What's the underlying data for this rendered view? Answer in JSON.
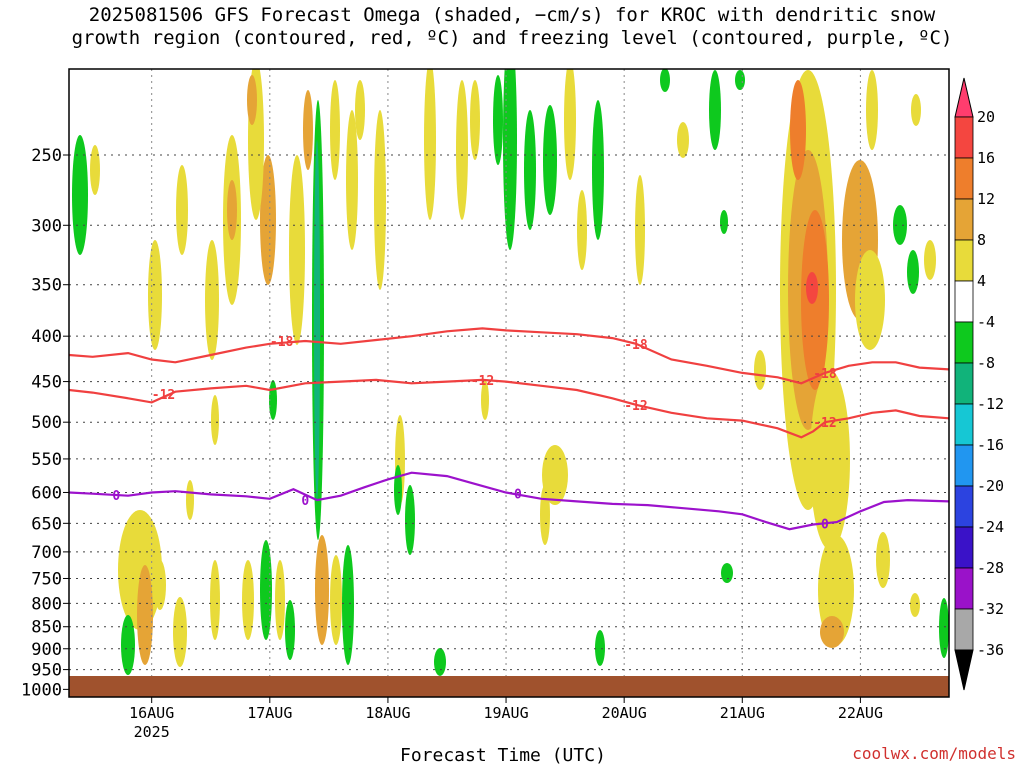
{
  "chart_data": {
    "type": "heatmap",
    "title_lines": [
      "2025081506 GFS Forecast Omega (shaded, −cm/s) for KROC with dendritic snow",
      "growth region (contoured, red, ºC) and freezing level (contoured, purple, ºC)"
    ],
    "xlabel": "Forecast Time (UTC)",
    "ylabel": "",
    "x_ticks": [
      "16AUG",
      "17AUG",
      "18AUG",
      "19AUG",
      "20AUG",
      "21AUG",
      "22AUG"
    ],
    "x_tick_sublabel": "2025",
    "x_range_days": [
      15.3,
      22.75
    ],
    "y_ticks": [
      250,
      300,
      350,
      400,
      450,
      500,
      550,
      600,
      650,
      700,
      750,
      800,
      850,
      900,
      950,
      1000
    ],
    "y_range_hpa": [
      200,
      1020
    ],
    "y_scale": "log",
    "grid": true,
    "colorbar": {
      "labels": [
        "20",
        "16",
        "12",
        "8",
        "4",
        "-4",
        "-8",
        "-12",
        "-16",
        "-20",
        "-24",
        "-28",
        "-32",
        "-36"
      ],
      "colors": [
        "#ff3d6e",
        "#f44640",
        "#ee7e2c",
        "#e5a436",
        "#e8db3a",
        "#ffffff",
        "#0ec91e",
        "#11b37a",
        "#16c7d4",
        "#2196f0",
        "#2c43e0",
        "#3a12c8",
        "#9a12c9",
        "#a8a8a8"
      ]
    },
    "contours": [
      {
        "label": "-18",
        "color": "#f04040",
        "x": [
          15.3,
          15.5,
          15.8,
          16.0,
          16.2,
          16.5,
          16.8,
          17.0,
          17.3,
          17.6,
          17.9,
          18.2,
          18.5,
          18.8,
          19.0,
          19.3,
          19.6,
          19.9,
          20.1,
          20.4,
          20.7,
          21.0,
          21.3,
          21.5,
          21.7,
          21.9,
          22.1,
          22.3,
          22.5,
          22.75
        ],
        "y": [
          420,
          422,
          418,
          425,
          428,
          420,
          412,
          408,
          405,
          408,
          404,
          400,
          395,
          392,
          394,
          396,
          398,
          402,
          408,
          425,
          432,
          440,
          445,
          452,
          440,
          432,
          428,
          428,
          434,
          436
        ]
      },
      {
        "label": "-12",
        "color": "#f04040",
        "x": [
          15.3,
          15.5,
          15.8,
          16.0,
          16.2,
          16.5,
          16.8,
          17.0,
          17.3,
          17.6,
          17.9,
          18.2,
          18.5,
          18.8,
          19.0,
          19.3,
          19.6,
          19.9,
          20.1,
          20.4,
          20.7,
          21.0,
          21.3,
          21.5,
          21.6,
          21.7,
          21.9,
          22.1,
          22.3,
          22.5,
          22.75
        ],
        "y": [
          460,
          463,
          470,
          475,
          462,
          458,
          455,
          460,
          452,
          450,
          448,
          452,
          450,
          448,
          450,
          455,
          460,
          470,
          478,
          488,
          495,
          498,
          508,
          520,
          512,
          500,
          495,
          488,
          485,
          492,
          495
        ]
      },
      {
        "label": "0",
        "color": "#9c12cc",
        "x": [
          15.3,
          15.5,
          15.8,
          16.0,
          16.2,
          16.5,
          16.8,
          17.0,
          17.2,
          17.4,
          17.6,
          17.8,
          18.0,
          18.2,
          18.5,
          18.7,
          19.0,
          19.3,
          19.6,
          19.9,
          20.2,
          20.5,
          20.8,
          21.0,
          21.2,
          21.4,
          21.6,
          21.8,
          22.0,
          22.2,
          22.4,
          22.75
        ],
        "y": [
          600,
          602,
          605,
          600,
          598,
          603,
          606,
          610,
          595,
          612,
          605,
          592,
          580,
          570,
          575,
          585,
          600,
          610,
          614,
          618,
          620,
          625,
          630,
          635,
          648,
          660,
          652,
          648,
          630,
          615,
          612,
          614
        ]
      }
    ]
  },
  "footer": {
    "credit": "coolwx.com/models"
  }
}
